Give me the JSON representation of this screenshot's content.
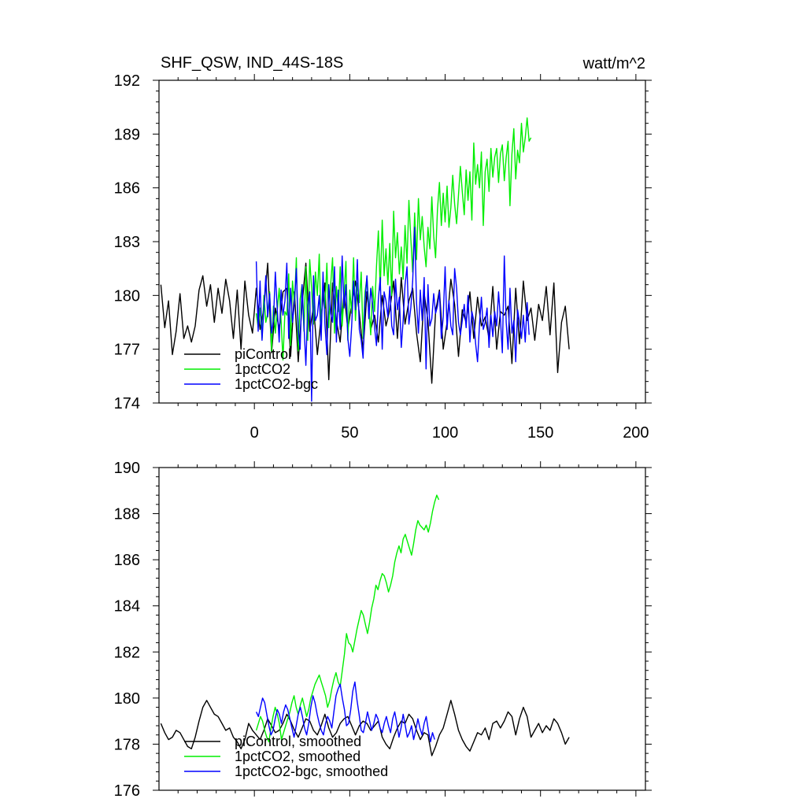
{
  "chart_data": [
    {
      "type": "line",
      "panel": "top",
      "title": "SHF_QSW, IND_44S-18S",
      "units": "watt/m^2",
      "xlim": [
        -50,
        205
      ],
      "ylim": [
        174,
        192
      ],
      "xticks": [
        0,
        50,
        100,
        150,
        200
      ],
      "xtick_labels": [
        "0",
        "50",
        "100",
        "150",
        "200"
      ],
      "yticks": [
        174,
        177,
        180,
        183,
        186,
        189,
        192
      ],
      "ytick_labels": [
        "174",
        "177",
        "180",
        "183",
        "186",
        "189",
        "192"
      ],
      "legend_position": "bottom-left",
      "series": [
        {
          "name": "piControl",
          "color": "#000000",
          "x_start": -49,
          "x_step": 2,
          "values": [
            180.6,
            178.2,
            179.7,
            176.7,
            178.0,
            180.1,
            177.6,
            178.3,
            177.4,
            178.3,
            180.3,
            181.1,
            179.4,
            180.6,
            178.5,
            180.4,
            179.0,
            180.9,
            179.7,
            177.6,
            180.3,
            177.0,
            180.8,
            178.9,
            177.9,
            180.4,
            178.1,
            179.3,
            181.8,
            176.8,
            179.3,
            178.1,
            180.2,
            180.4,
            176.6,
            180.2,
            176.3,
            179.5,
            181.8,
            178.0,
            179.4,
            176.7,
            178.8,
            180.7,
            175.3,
            180.7,
            178.6,
            177.4,
            180.2,
            178.1,
            179.5,
            180.8,
            179.0,
            176.9,
            180.2,
            178.1,
            178.9,
            177.4,
            180.0,
            178.3,
            179.2,
            180.8,
            177.6,
            181.0,
            178.4,
            179.7,
            180.4,
            177.9,
            176.3,
            180.1,
            178.6,
            175.1,
            179.1,
            180.3,
            177.0,
            178.5,
            180.9,
            179.5,
            176.6,
            179.2,
            178.5,
            180.2,
            177.6,
            179.9,
            178.3,
            178.8,
            177.6,
            180.5,
            177.0,
            179.1,
            178.9,
            179.4,
            176.2,
            180.4,
            177.3,
            180.8,
            178.6,
            179.3,
            177.5,
            179.5,
            178.6,
            180.5,
            177.8,
            180.7,
            175.7,
            178.5,
            179.4,
            177.0
          ]
        },
        {
          "name": "1pctCO2",
          "color": "#00ee00",
          "x_start": 1,
          "x_step": 1,
          "values": [
            179.0,
            178.2,
            179.3,
            177.6,
            180.0,
            178.5,
            179.0,
            180.2,
            176.9,
            179.4,
            177.9,
            179.2,
            180.4,
            178.6,
            176.4,
            179.1,
            178.9,
            181.2,
            177.2,
            180.8,
            179.5,
            182.1,
            176.9,
            179.8,
            180.6,
            178.0,
            181.6,
            177.5,
            182.0,
            180.4,
            178.4,
            181.3,
            180.0,
            182.3,
            178.1,
            180.7,
            179.3,
            181.8,
            178.2,
            180.6,
            182.1,
            177.9,
            180.5,
            179.1,
            181.6,
            178.3,
            180.0,
            181.9,
            177.5,
            180.3,
            179.0,
            182.1,
            178.6,
            180.7,
            179.6,
            181.3,
            177.6,
            180.2,
            181.0,
            179.4,
            177.8,
            180.5,
            179.1,
            181.6,
            183.6,
            180.3,
            184.2,
            181.1,
            182.6,
            180.6,
            182.9,
            180.0,
            184.7,
            182.1,
            183.5,
            181.2,
            182.7,
            180.9,
            183.9,
            181.8,
            185.3,
            183.2,
            181.3,
            184.6,
            182.0,
            185.4,
            183.1,
            184.4,
            182.7,
            181.6,
            183.8,
            182.6,
            185.5,
            183.3,
            182.1,
            184.8,
            186.3,
            183.9,
            185.7,
            184.1,
            186.1,
            183.8,
            184.9,
            186.7,
            185.1,
            184.0,
            185.6,
            187.2,
            185.8,
            184.5,
            187.0,
            185.3,
            186.9,
            184.2,
            188.5,
            186.2,
            187.3,
            186.0,
            188.0,
            183.9,
            186.9,
            187.6,
            185.8,
            188.2,
            186.6,
            187.7,
            188.2,
            186.3,
            187.9,
            188.4,
            186.4,
            187.7,
            188.6,
            185.0,
            187.9,
            189.3,
            186.5,
            188.1,
            187.4,
            189.6,
            188.0,
            188.8,
            189.9,
            188.6,
            188.8
          ]
        },
        {
          "name": "1pctCO2-bgc",
          "color": "#0000ff",
          "x_start": 1,
          "x_step": 1,
          "values": [
            181.9,
            178.0,
            180.8,
            177.5,
            179.3,
            181.1,
            178.8,
            180.1,
            177.9,
            178.6,
            181.3,
            179.2,
            177.4,
            180.3,
            178.9,
            179.7,
            181.8,
            177.6,
            180.4,
            178.5,
            179.6,
            181.5,
            178.1,
            177.0,
            180.6,
            178.3,
            176.1,
            179.4,
            180.2,
            174.1,
            181.1,
            178.6,
            178.9,
            180.0,
            177.5,
            181.3,
            178.4,
            176.7,
            180.6,
            179.0,
            178.5,
            181.6,
            177.4,
            180.3,
            178.1,
            182.2,
            179.3,
            180.6,
            177.6,
            176.6,
            178.3,
            180.8,
            179.2,
            182.0,
            178.1,
            177.5,
            176.5,
            179.6,
            181.1,
            178.7,
            180.4,
            179.5,
            178.2,
            177.2,
            179.8,
            181.0,
            177.0,
            180.2,
            179.7,
            178.8,
            180.5,
            178.3,
            177.8,
            180.9,
            179.2,
            179.9,
            177.1,
            178.6,
            180.6,
            181.6,
            178.4,
            179.3,
            180.8,
            183.8,
            179.6,
            177.9,
            180.3,
            178.6,
            181.0,
            175.9,
            180.6,
            178.3,
            178.7,
            180.1,
            179.0,
            179.4,
            180.2,
            177.6,
            178.8,
            181.6,
            178.1,
            179.7,
            178.3,
            177.8,
            181.5,
            180.4,
            178.5,
            177.8,
            178.6,
            179.5,
            178.2,
            180.0,
            177.4,
            179.1,
            178.6,
            177.3,
            176.3,
            178.4,
            179.9,
            178.1,
            178.5,
            179.3,
            177.1,
            178.9,
            177.7,
            179.1,
            178.3,
            180.2,
            178.7,
            176.8,
            182.2,
            178.5,
            177.0,
            180.4,
            177.9,
            178.6,
            176.3,
            179.2,
            178.5,
            177.6,
            178.9,
            177.4,
            179.6,
            177.8
          ]
        }
      ]
    },
    {
      "type": "line",
      "panel": "bottom",
      "xlim": [
        -50,
        205
      ],
      "ylim": [
        176,
        190
      ],
      "xticks": [
        0,
        50,
        100,
        150,
        200
      ],
      "yticks": [
        176,
        178,
        180,
        182,
        184,
        186,
        188,
        190
      ],
      "ytick_labels": [
        "176",
        "178",
        "180",
        "182",
        "184",
        "186",
        "188",
        "190"
      ],
      "legend_position": "bottom-left",
      "series": [
        {
          "name": "piControl, smoothed",
          "color": "#000000",
          "x_start": -49,
          "x_step": 2,
          "values": [
            178.9,
            178.5,
            178.2,
            178.3,
            178.6,
            178.5,
            178.2,
            177.9,
            177.8,
            178.3,
            179.0,
            179.6,
            179.9,
            179.6,
            179.3,
            179.2,
            178.9,
            178.6,
            178.7,
            178.3,
            178.1,
            177.8,
            178.2,
            178.9,
            178.6,
            178.4,
            178.2,
            178.6,
            179.1,
            178.8,
            178.5,
            178.6,
            178.9,
            179.3,
            179.0,
            178.6,
            178.3,
            178.7,
            179.1,
            179.0,
            178.6,
            178.4,
            178.8,
            179.3,
            178.7,
            178.3,
            178.5,
            178.9,
            179.1,
            179.2,
            178.8,
            178.4,
            178.8,
            179.0,
            178.9,
            178.6,
            178.8,
            179.0,
            178.3,
            178.0,
            177.8,
            178.3,
            178.7,
            179.0,
            178.9,
            179.3,
            179.1,
            178.6,
            178.2,
            178.5,
            178.4,
            177.5,
            177.9,
            178.4,
            178.7,
            179.3,
            179.9,
            179.3,
            178.6,
            178.2,
            177.9,
            177.7,
            178.1,
            178.5,
            178.4,
            178.7,
            178.2,
            178.9,
            179.0,
            178.7,
            179.0,
            179.4,
            179.2,
            178.4,
            179.1,
            179.6,
            179.2,
            178.3,
            178.6,
            178.9,
            178.5,
            178.8,
            178.6,
            179.1,
            178.9,
            178.5,
            178.0,
            178.3
          ]
        },
        {
          "name": "1pctCO2, smoothed",
          "color": "#00ee00",
          "x_start": 1,
          "x_step": 1.1,
          "values": [
            178.6,
            178.9,
            179.2,
            179.0,
            178.6,
            178.3,
            178.1,
            178.7,
            179.2,
            179.6,
            179.3,
            178.9,
            178.2,
            178.5,
            178.8,
            179.1,
            179.4,
            179.8,
            180.1,
            179.6,
            179.3,
            179.7,
            180.0,
            179.6,
            179.2,
            179.5,
            180.0,
            180.3,
            180.6,
            180.8,
            181.0,
            180.7,
            180.4,
            180.1,
            179.6,
            179.9,
            180.4,
            180.8,
            181.1,
            180.7,
            180.5,
            181.2,
            181.9,
            182.8,
            182.4,
            182.3,
            182.0,
            182.5,
            183.0,
            183.4,
            183.8,
            183.6,
            183.2,
            182.8,
            183.3,
            183.9,
            184.3,
            184.9,
            184.7,
            185.1,
            185.4,
            185.3,
            185.0,
            184.6,
            184.9,
            185.3,
            185.9,
            186.3,
            186.6,
            186.3,
            186.9,
            187.1,
            186.8,
            186.5,
            186.2,
            186.7,
            187.3,
            187.7,
            187.5,
            187.4,
            187.3,
            187.5,
            187.2,
            187.6,
            188.1,
            188.5,
            188.8,
            188.6
          ]
        },
        {
          "name": "1pctCO2-bgc, smoothed",
          "color": "#0000ff",
          "x_start": 1,
          "x_step": 1.1,
          "values": [
            179.4,
            179.2,
            179.6,
            180.0,
            179.8,
            179.3,
            178.8,
            178.4,
            178.6,
            179.1,
            179.5,
            179.3,
            178.9,
            179.4,
            179.7,
            179.5,
            179.1,
            178.7,
            178.3,
            178.8,
            179.3,
            179.6,
            179.2,
            178.7,
            178.4,
            178.9,
            179.6,
            180.1,
            179.8,
            179.3,
            178.9,
            178.6,
            178.4,
            178.9,
            179.2,
            179.0,
            178.7,
            179.4,
            180.1,
            180.4,
            180.6,
            180.0,
            179.5,
            178.8,
            178.9,
            179.5,
            180.3,
            180.7,
            179.9,
            179.3,
            178.6,
            178.5,
            178.9,
            179.4,
            179.0,
            178.6,
            178.9,
            179.3,
            179.1,
            178.7,
            178.5,
            178.9,
            179.2,
            178.8,
            178.5,
            179.1,
            179.4,
            178.9,
            178.3,
            178.7,
            179.3,
            178.8,
            178.3,
            178.5,
            178.8,
            178.2,
            178.6,
            179.1,
            178.7,
            178.4,
            178.9,
            179.2,
            178.6,
            178.1,
            178.5,
            178.2
          ]
        }
      ]
    }
  ]
}
